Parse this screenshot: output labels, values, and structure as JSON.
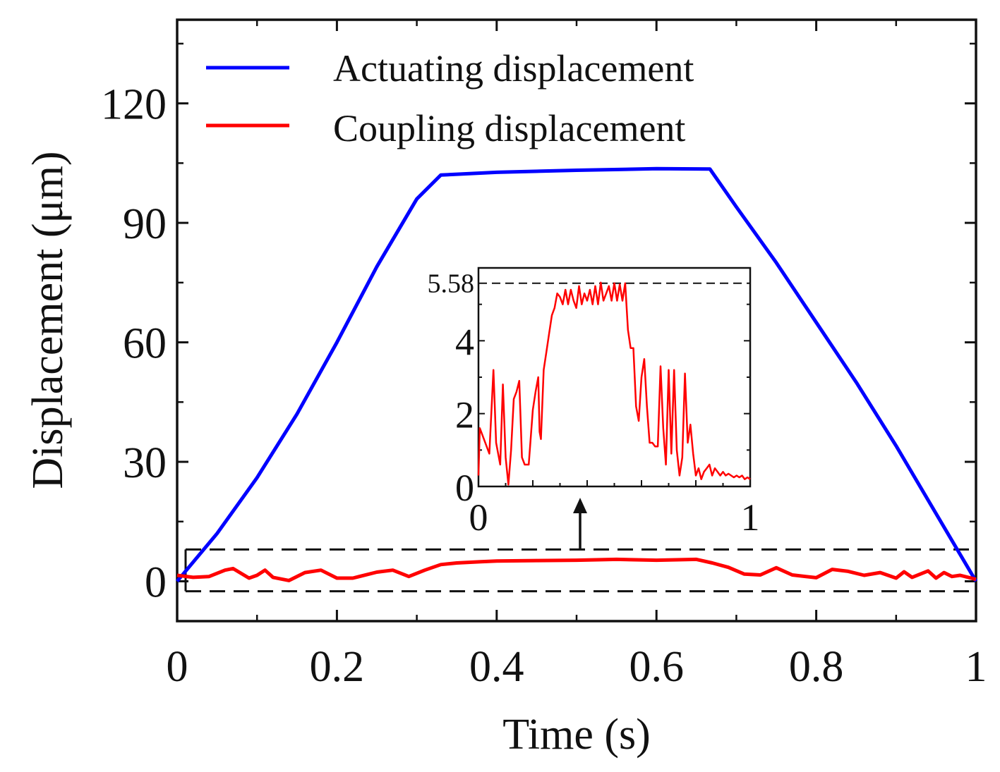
{
  "chart_data": {
    "type": "line",
    "title": "",
    "xlabel": "Time (s)",
    "ylabel": "Displacement (μm)",
    "xlim": [
      0,
      1
    ],
    "ylim": [
      -10,
      141
    ],
    "xticks": [
      0,
      0.2,
      0.4,
      0.6,
      0.8,
      1
    ],
    "xtick_labels": [
      "0",
      "0.2",
      "0.4",
      "0.6",
      "0.8",
      "1"
    ],
    "yticks": [
      0,
      30,
      60,
      90,
      120
    ],
    "ytick_labels": [
      "0",
      "30",
      "60",
      "90",
      "120"
    ],
    "grid": false,
    "legend_position": "top-left",
    "series": [
      {
        "name": "Actuating displacement",
        "color": "#0000ff",
        "x": [
          0,
          0.05,
          0.1,
          0.15,
          0.2,
          0.25,
          0.3,
          0.33,
          0.4,
          0.5,
          0.6,
          0.667,
          0.7,
          0.75,
          0.8,
          0.85,
          0.9,
          0.95,
          1.0
        ],
        "y": [
          0,
          12,
          26,
          42,
          60,
          79,
          96,
          102,
          102.7,
          103.2,
          103.6,
          103.5,
          94,
          80,
          65,
          50,
          34,
          17,
          0
        ]
      },
      {
        "name": "Coupling displacement",
        "color": "#ff0000",
        "x": [
          0,
          0.02,
          0.04,
          0.06,
          0.07,
          0.09,
          0.1,
          0.11,
          0.12,
          0.14,
          0.16,
          0.18,
          0.2,
          0.22,
          0.25,
          0.27,
          0.29,
          0.31,
          0.33,
          0.35,
          0.38,
          0.4,
          0.45,
          0.5,
          0.55,
          0.6,
          0.65,
          0.67,
          0.69,
          0.71,
          0.73,
          0.75,
          0.77,
          0.8,
          0.82,
          0.84,
          0.86,
          0.88,
          0.9,
          0.91,
          0.92,
          0.94,
          0.95,
          0.96,
          0.97,
          0.98,
          1.0
        ],
        "y": [
          1.5,
          1.0,
          1.2,
          2.8,
          3.2,
          0.8,
          1.5,
          2.8,
          1.0,
          0.2,
          2.2,
          2.8,
          0.8,
          0.8,
          2.3,
          2.8,
          1.2,
          2.8,
          4.2,
          4.6,
          4.9,
          5.1,
          5.2,
          5.3,
          5.5,
          5.3,
          5.5,
          4.6,
          3.5,
          1.8,
          1.6,
          3.4,
          1.6,
          0.9,
          3.0,
          2.5,
          1.5,
          2.2,
          0.8,
          2.4,
          1.0,
          2.6,
          0.8,
          2.2,
          1.2,
          1.5,
          0.5
        ]
      }
    ],
    "zoom_box": {
      "y_range": [
        -2.5,
        8.0
      ]
    },
    "inset": {
      "type": "line",
      "xlim": [
        0,
        1
      ],
      "ylim": [
        0,
        6
      ],
      "xticks": [
        0,
        1
      ],
      "xtick_labels": [
        "0",
        "1"
      ],
      "yticks": [
        0,
        2,
        4
      ],
      "ytick_labels": [
        "0",
        "2",
        "4"
      ],
      "peak_value": 5.58,
      "peak_label": "5.58",
      "peak_label_color": "#ff0000",
      "series": {
        "name": "Coupling displacement (zoom)",
        "color": "#ff0000",
        "x": [
          0,
          0.005,
          0.02,
          0.04,
          0.055,
          0.065,
          0.08,
          0.09,
          0.1,
          0.11,
          0.12,
          0.13,
          0.14,
          0.15,
          0.16,
          0.17,
          0.185,
          0.2,
          0.21,
          0.22,
          0.225,
          0.23,
          0.24,
          0.25,
          0.26,
          0.27,
          0.28,
          0.29,
          0.3,
          0.31,
          0.32,
          0.33,
          0.34,
          0.35,
          0.36,
          0.37,
          0.38,
          0.39,
          0.4,
          0.41,
          0.42,
          0.43,
          0.44,
          0.45,
          0.46,
          0.47,
          0.48,
          0.49,
          0.5,
          0.51,
          0.52,
          0.53,
          0.54,
          0.55,
          0.56,
          0.57,
          0.58,
          0.59,
          0.6,
          0.61,
          0.62,
          0.63,
          0.64,
          0.65,
          0.66,
          0.67,
          0.68,
          0.69,
          0.7,
          0.71,
          0.72,
          0.73,
          0.74,
          0.75,
          0.76,
          0.77,
          0.78,
          0.79,
          0.8,
          0.81,
          0.82,
          0.83,
          0.84,
          0.85,
          0.86,
          0.87,
          0.88,
          0.89,
          0.9,
          0.91,
          0.92,
          0.93,
          0.94,
          0.95,
          0.96,
          0.97,
          0.98,
          0.99,
          1.0
        ],
        "y": [
          0.3,
          1.6,
          1.3,
          0.9,
          3.2,
          1.2,
          0.6,
          2.8,
          0.8,
          0.05,
          1.0,
          2.4,
          2.6,
          2.9,
          0.8,
          0.6,
          0.6,
          2.1,
          2.6,
          3.0,
          1.5,
          1.3,
          3.2,
          3.7,
          4.2,
          4.7,
          4.9,
          5.3,
          5.2,
          5.0,
          5.4,
          5.0,
          5.4,
          5.1,
          4.9,
          5.5,
          5.0,
          5.3,
          5.1,
          5.4,
          5.0,
          5.5,
          5.0,
          5.6,
          5.1,
          5.3,
          5.5,
          5.1,
          5.58,
          5.1,
          5.55,
          5.1,
          5.58,
          4.3,
          3.8,
          3.8,
          2.2,
          1.8,
          3.0,
          3.5,
          2.2,
          1.2,
          1.2,
          1.1,
          1.1,
          3.3,
          1.6,
          0.6,
          3.2,
          0.9,
          3.2,
          1.0,
          0.3,
          0.8,
          3.1,
          1.2,
          1.7,
          0.9,
          0.3,
          0.5,
          0.2,
          0.4,
          0.5,
          0.6,
          0.3,
          0.5,
          0.4,
          0.3,
          0.4,
          0.3,
          0.35,
          0.3,
          0.25,
          0.3,
          0.25,
          0.3,
          0.2,
          0.25,
          0.2
        ]
      }
    }
  }
}
